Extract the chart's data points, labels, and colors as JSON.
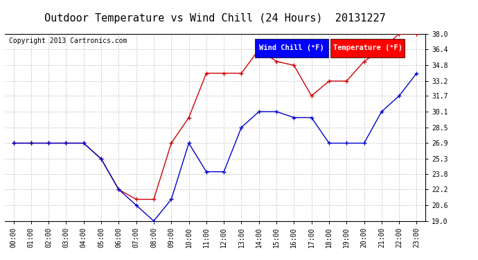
{
  "title": "Outdoor Temperature vs Wind Chill (24 Hours)  20131227",
  "copyright": "Copyright 2013 Cartronics.com",
  "background_color": "#ffffff",
  "grid_color": "#cccccc",
  "hours": [
    "00:00",
    "01:00",
    "02:00",
    "03:00",
    "04:00",
    "05:00",
    "06:00",
    "07:00",
    "08:00",
    "09:00",
    "10:00",
    "11:00",
    "12:00",
    "13:00",
    "14:00",
    "15:00",
    "16:00",
    "17:00",
    "18:00",
    "19:00",
    "20:00",
    "21:00",
    "22:00",
    "23:00"
  ],
  "temperature": [
    26.9,
    26.9,
    26.9,
    26.9,
    26.9,
    25.3,
    22.2,
    21.2,
    21.2,
    26.9,
    29.5,
    34.0,
    34.0,
    34.0,
    36.4,
    35.2,
    34.8,
    31.7,
    33.2,
    33.2,
    35.2,
    36.4,
    38.0,
    38.0
  ],
  "wind_chill": [
    26.9,
    26.9,
    26.9,
    26.9,
    26.9,
    25.3,
    22.2,
    20.6,
    19.0,
    21.2,
    26.9,
    24.0,
    24.0,
    28.5,
    30.1,
    30.1,
    29.5,
    29.5,
    26.9,
    26.9,
    26.9,
    30.1,
    31.7,
    34.0
  ],
  "ylim_min": 19.0,
  "ylim_max": 38.0,
  "yticks": [
    19.0,
    20.6,
    22.2,
    23.8,
    25.3,
    26.9,
    28.5,
    30.1,
    31.7,
    33.2,
    34.8,
    36.4,
    38.0
  ],
  "temp_color": "#cc0000",
  "wind_color": "#0000cc",
  "temp_label": "Temperature (°F)",
  "wind_label": "Wind Chill (°F)",
  "title_fontsize": 11,
  "tick_fontsize": 7,
  "legend_fontsize": 7.5,
  "copyright_fontsize": 7
}
